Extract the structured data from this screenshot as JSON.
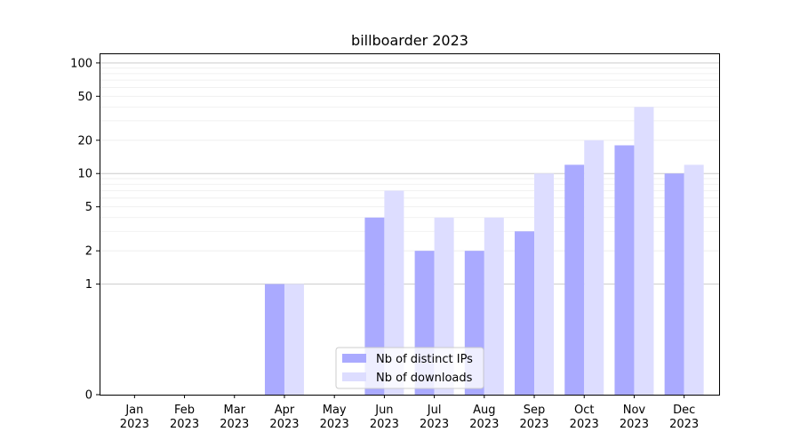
{
  "chart_data": {
    "type": "bar",
    "title": "billboarder 2023",
    "xlabel": "",
    "ylabel": "",
    "y_scale": "symlog",
    "ylim": [
      0,
      120
    ],
    "y_ticks": [
      0,
      1,
      2,
      5,
      10,
      20,
      50,
      100
    ],
    "grid": "horizontal",
    "legend_position": "lower-center",
    "categories": [
      "Jan\n2023",
      "Feb\n2023",
      "Mar\n2023",
      "Apr\n2023",
      "May\n2023",
      "Jun\n2023",
      "Jul\n2023",
      "Aug\n2023",
      "Sep\n2023",
      "Oct\n2023",
      "Nov\n2023",
      "Dec\n2023"
    ],
    "series": [
      {
        "name": "Nb of distinct IPs",
        "color": "#aaaaff",
        "values": [
          0,
          0,
          0,
          1,
          0,
          4,
          2,
          2,
          3,
          12,
          18,
          10
        ]
      },
      {
        "name": "Nb of downloads",
        "color": "#ddddff",
        "values": [
          0,
          0,
          0,
          1,
          0,
          7,
          4,
          4,
          10,
          20,
          40,
          12
        ]
      }
    ]
  }
}
